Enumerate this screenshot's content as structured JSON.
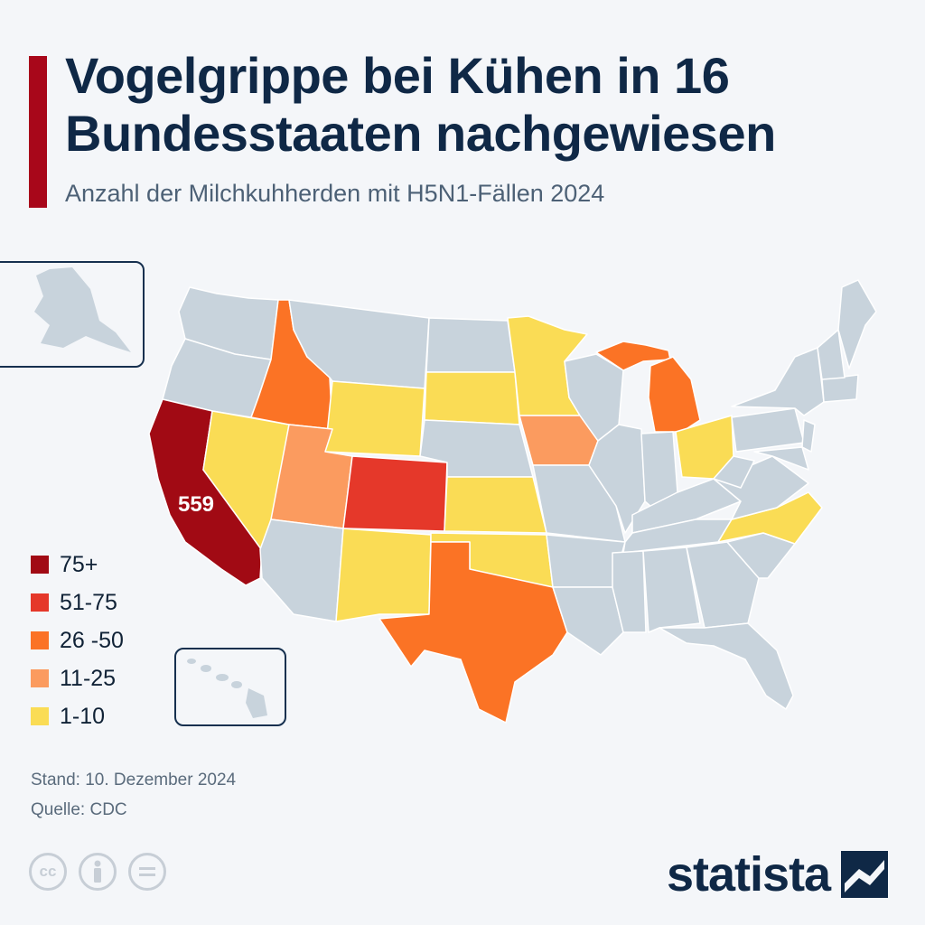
{
  "title": "Vogelgrippe bei Kühen in 16 Bundesstaaten nachgewiesen",
  "subtitle": "Anzahl der Milchkuhherden mit H5N1-Fällen 2024",
  "map_label": {
    "state": "California",
    "value": "559"
  },
  "legend": [
    {
      "label": "75+",
      "color": "#a10a14"
    },
    {
      "label": "51-75",
      "color": "#e5382a"
    },
    {
      "label": "26 -50",
      "color": "#fb7325"
    },
    {
      "label": "11-25",
      "color": "#fb9b5f"
    },
    {
      "label": "1-10",
      "color": "#fadc55"
    }
  ],
  "no_data_color": "#c8d3dc",
  "states_highlighted": [
    {
      "state": "California",
      "category": "75+"
    },
    {
      "state": "Colorado",
      "category": "51-75"
    },
    {
      "state": "Idaho",
      "category": "26 -50"
    },
    {
      "state": "Texas",
      "category": "26 -50"
    },
    {
      "state": "Michigan",
      "category": "26 -50"
    },
    {
      "state": "Utah",
      "category": "11-25"
    },
    {
      "state": "Iowa",
      "category": "11-25"
    },
    {
      "state": "Nevada",
      "category": "1-10"
    },
    {
      "state": "Wyoming",
      "category": "1-10"
    },
    {
      "state": "South Dakota",
      "category": "1-10"
    },
    {
      "state": "Minnesota",
      "category": "1-10"
    },
    {
      "state": "Kansas",
      "category": "1-10"
    },
    {
      "state": "Oklahoma",
      "category": "1-10"
    },
    {
      "state": "New Mexico",
      "category": "1-10"
    },
    {
      "state": "Ohio",
      "category": "1-10"
    },
    {
      "state": "North Carolina",
      "category": "1-10"
    }
  ],
  "source": {
    "date": "Stand: 10. Dezember 2024",
    "source": "Quelle: CDC"
  },
  "license_icons": [
    "cc-icon",
    "by-icon",
    "nd-icon"
  ],
  "logo": {
    "text": "statista"
  }
}
